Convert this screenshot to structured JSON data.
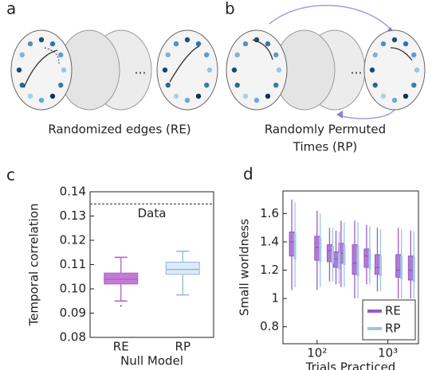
{
  "diagrams": [
    {
      "label": "a",
      "ellipsis": "…",
      "caption": [
        "Randomized edges (RE)"
      ]
    },
    {
      "label": "b",
      "ellipsis": "…",
      "caption": [
        "Randomly Permuted",
        "Times (RP)"
      ]
    }
  ],
  "chart_data": [
    {
      "type": "box",
      "label": "c",
      "xlabel": "Null Model",
      "ylabel": "Temporal correlation",
      "categories": [
        "RE",
        "RP"
      ],
      "colors": [
        "#b35cc8",
        "#8fb8e0"
      ],
      "boxes": [
        {
          "low": 0.095,
          "q1": 0.102,
          "median": 0.104,
          "q3": 0.1065,
          "high": 0.113,
          "outliers": [
            0.093
          ]
        },
        {
          "low": 0.0975,
          "q1": 0.106,
          "median": 0.108,
          "q3": 0.111,
          "high": 0.1155,
          "outliers": []
        }
      ],
      "reference": {
        "value": 0.135,
        "label": "Data"
      },
      "ylim": [
        0.08,
        0.14
      ],
      "yticks": [
        0.08,
        0.09,
        {
          "value": 0.1,
          "label": "0.10"
        },
        0.11,
        0.12,
        0.13,
        0.14
      ]
    },
    {
      "type": "box",
      "label": "d",
      "xlabel": "Trials Practiced",
      "ylabel": "Small worldness",
      "log_x": true,
      "legend": "lower right",
      "x": [
        44,
        100,
        150,
        185,
        218,
        340,
        500,
        710,
        1400,
        2100
      ],
      "series": [
        {
          "name": "RE",
          "color": "#9b59c6",
          "boxes": [
            {
              "low": 1.06,
              "q1": 1.3,
              "median": 1.4,
              "q3": 1.47,
              "high": 1.7
            },
            {
              "low": 1.06,
              "q1": 1.27,
              "median": 1.36,
              "q3": 1.44,
              "high": 1.62
            },
            {
              "low": 1.12,
              "q1": 1.26,
              "median": 1.34,
              "q3": 1.38,
              "high": 1.5
            },
            {
              "low": 1.1,
              "q1": 1.22,
              "median": 1.28,
              "q3": 1.33,
              "high": 1.48
            },
            {
              "low": 1.08,
              "q1": 1.25,
              "median": 1.32,
              "q3": 1.39,
              "high": 1.55
            },
            {
              "low": 1.0,
              "q1": 1.17,
              "median": 1.25,
              "q3": 1.38,
              "high": 1.55
            },
            {
              "low": 1.1,
              "q1": 1.22,
              "median": 1.3,
              "q3": 1.35,
              "high": 1.52
            },
            {
              "low": 1.05,
              "q1": 1.17,
              "median": 1.22,
              "q3": 1.31,
              "high": 1.5
            },
            {
              "low": 1.0,
              "q1": 1.15,
              "median": 1.2,
              "q3": 1.31,
              "high": 1.5
            },
            {
              "low": 1.0,
              "q1": 1.13,
              "median": 1.2,
              "q3": 1.3,
              "high": 1.48
            }
          ]
        },
        {
          "name": "RP",
          "color": "#9cc3e6",
          "boxes": [
            {
              "low": 1.08,
              "q1": 1.28,
              "median": 1.38,
              "q3": 1.46,
              "high": 1.68
            },
            {
              "low": 1.08,
              "q1": 1.26,
              "median": 1.35,
              "q3": 1.43,
              "high": 1.6
            },
            {
              "low": 1.12,
              "q1": 1.25,
              "median": 1.32,
              "q3": 1.37,
              "high": 1.5
            },
            {
              "low": 1.1,
              "q1": 1.21,
              "median": 1.27,
              "q3": 1.32,
              "high": 1.47
            },
            {
              "low": 1.08,
              "q1": 1.24,
              "median": 1.31,
              "q3": 1.38,
              "high": 1.54
            },
            {
              "low": 1.0,
              "q1": 1.16,
              "median": 1.24,
              "q3": 1.37,
              "high": 1.54
            },
            {
              "low": 1.1,
              "q1": 1.21,
              "median": 1.29,
              "q3": 1.34,
              "high": 1.51
            },
            {
              "low": 1.05,
              "q1": 1.16,
              "median": 1.21,
              "q3": 1.3,
              "high": 1.49
            },
            {
              "low": 1.0,
              "q1": 1.14,
              "median": 1.19,
              "q3": 1.3,
              "high": 1.49
            },
            {
              "low": 1.0,
              "q1": 1.12,
              "median": 1.19,
              "q3": 1.29,
              "high": 1.47
            }
          ]
        }
      ],
      "xlim": [
        33,
        2700
      ],
      "xticks": [
        {
          "value": 100,
          "label": "10²"
        },
        {
          "value": 1000,
          "label": "10³"
        }
      ],
      "ylim": [
        0.68,
        1.76
      ],
      "yticks": [
        0.8,
        1,
        1.2,
        1.4,
        1.6
      ]
    }
  ]
}
